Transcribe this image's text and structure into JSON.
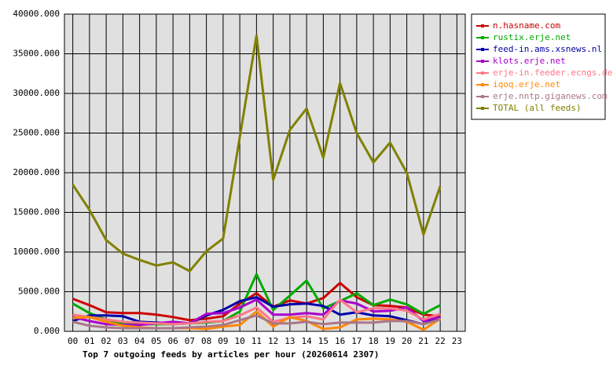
{
  "chart_data": {
    "type": "line",
    "title": "Top 7 outgoing feeds by articles per hour (20260614 2307)",
    "categories": [
      "00",
      "01",
      "02",
      "03",
      "04",
      "05",
      "06",
      "07",
      "08",
      "09",
      "10",
      "11",
      "12",
      "13",
      "14",
      "15",
      "16",
      "17",
      "18",
      "19",
      "20",
      "21",
      "22",
      "23"
    ],
    "ylim": [
      0,
      40000
    ],
    "yticks": [
      {
        "value": 0,
        "label": "0.000"
      },
      {
        "value": 5000,
        "label": "5000.000"
      },
      {
        "value": 10000,
        "label": "10000.000"
      },
      {
        "value": 15000,
        "label": "15000.000"
      },
      {
        "value": 20000,
        "label": "20000.000"
      },
      {
        "value": 25000,
        "label": "25000.000"
      },
      {
        "value": 30000,
        "label": "30000.000"
      },
      {
        "value": 35000,
        "label": "35000.000"
      },
      {
        "value": 40000,
        "label": "40000.000"
      }
    ],
    "grid": true,
    "legend": "right",
    "series": [
      {
        "name": "n.hasname.com",
        "color": "#cc0000",
        "values": [
          4100,
          3300,
          2400,
          2300,
          2300,
          2100,
          1800,
          1400,
          1600,
          1900,
          3500,
          4800,
          3100,
          3900,
          3500,
          4200,
          6100,
          4300,
          3300,
          3200,
          3000,
          2100,
          1900,
          null
        ]
      },
      {
        "name": "rustix.erje.net",
        "color": "#00aa00",
        "values": [
          3500,
          2300,
          1500,
          1000,
          900,
          900,
          900,
          1000,
          1100,
          1300,
          2500,
          7200,
          2700,
          4500,
          6400,
          2900,
          3800,
          4800,
          3300,
          4000,
          3400,
          2200,
          3300,
          null
        ]
      },
      {
        "name": "feed-in.ams.xsnews.nl",
        "color": "#0000aa",
        "values": [
          1300,
          2000,
          2000,
          1900,
          1200,
          1100,
          1000,
          1000,
          2000,
          2700,
          3800,
          4300,
          3100,
          3400,
          3500,
          3200,
          2100,
          2400,
          2000,
          1900,
          1400,
          900,
          1800,
          null
        ]
      },
      {
        "name": "klots.erje.net",
        "color": "#aa00cc",
        "values": [
          1800,
          1300,
          900,
          800,
          800,
          1000,
          1200,
          1000,
          2200,
          2300,
          3000,
          4000,
          2100,
          2100,
          2300,
          2100,
          3900,
          3500,
          2500,
          2600,
          3000,
          1300,
          1800,
          null
        ]
      },
      {
        "name": "erje-in.feeder.ecngs.de",
        "color": "#ff7788",
        "values": [
          2100,
          1800,
          1500,
          1200,
          1100,
          1000,
          900,
          1000,
          1200,
          1300,
          2000,
          3000,
          1200,
          1700,
          1900,
          1500,
          4000,
          2400,
          2900,
          2900,
          2600,
          1500,
          2200,
          null
        ]
      },
      {
        "name": "iqoq.erje.net",
        "color": "#ff8800",
        "values": [
          1700,
          1800,
          1200,
          700,
          500,
          400,
          400,
          400,
          300,
          600,
          800,
          2500,
          600,
          1800,
          1300,
          300,
          500,
          1500,
          1600,
          1500,
          1200,
          200,
          1600,
          null
        ]
      },
      {
        "name": "erje.nntp.giganews.com",
        "color": "#aa7788",
        "values": [
          1200,
          700,
          500,
          400,
          400,
          400,
          400,
          500,
          600,
          800,
          1400,
          2000,
          1000,
          1000,
          1200,
          900,
          1100,
          1100,
          1100,
          1300,
          1300,
          900,
          1500,
          null
        ]
      },
      {
        "name": "TOTAL (all feeds)",
        "color": "#808000",
        "values": [
          18500,
          15300,
          11500,
          9800,
          9000,
          8300,
          8700,
          7600,
          10100,
          11700,
          24500,
          37300,
          19100,
          25400,
          28100,
          21900,
          31300,
          25000,
          21300,
          23800,
          20000,
          12200,
          18300,
          null
        ]
      }
    ]
  }
}
